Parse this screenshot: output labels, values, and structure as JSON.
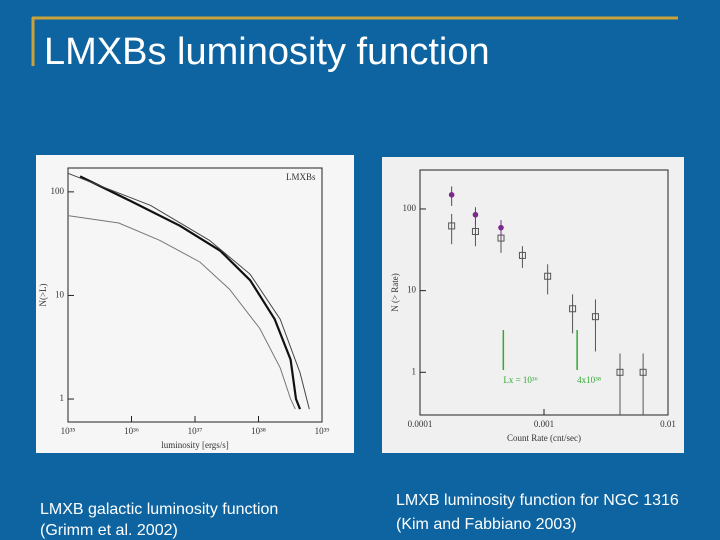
{
  "title": "LMXBs luminosity function",
  "captions": [
    [
      "LMXB galactic luminosity function",
      "(Grimm et al. 2002)"
    ],
    [
      "LMXB luminosity function for NGC 1316",
      "(Kim and Fabbiano 2003)"
    ]
  ],
  "chart_data": [
    {
      "type": "line",
      "log_x": true,
      "log_y": true,
      "x_label": "luminosity [ergs/s]",
      "y_label": "N(>L)",
      "annotation": "LMXBs",
      "xlim": [
        1e+35,
        1e+39
      ],
      "ylim": [
        0.6,
        170
      ],
      "xticks": [
        {
          "value": 1e+35,
          "label": "10³⁵"
        },
        {
          "value": 1e+36,
          "label": "10³⁶"
        },
        {
          "value": 1e+37,
          "label": "10³⁷"
        },
        {
          "value": 1e+38,
          "label": "10³⁸"
        },
        {
          "value": 1e+39,
          "label": "10³⁹"
        }
      ],
      "yticks": [
        1,
        10,
        100
      ],
      "series": [
        {
          "color": "#111111",
          "line_width": 2.2,
          "x": [
            1.55e+35,
            9.5e+35,
            5.8e+36,
            2.5e+37,
            7.4e+37,
            1.8e+38,
            3.2e+38,
            3.9e+38,
            4.5e+38
          ],
          "values": [
            141,
            82,
            47,
            27,
            14,
            5.9,
            2.4,
            1,
            0.8
          ]
        },
        {
          "color": "#777777",
          "line_width": 1,
          "x": [
            1e+35,
            6.3e+35,
            2.8e+36,
            1.2e+37,
            3.5e+37,
            1.05e+38,
            2.2e+38,
            3.2e+38,
            3.8e+38
          ],
          "values": [
            59,
            50,
            34,
            21,
            11.5,
            4.8,
            2,
            1,
            0.8
          ]
        },
        {
          "color": "#444444",
          "line_width": 1,
          "x": [
            1e+35,
            2e+36,
            1.7e+37,
            7.4e+37,
            2.2e+38,
            4.5e+38,
            6.3e+38
          ],
          "values": [
            151,
            74,
            34,
            16,
            5.9,
            1.8,
            0.8
          ]
        }
      ]
    },
    {
      "type": "scatter",
      "log_x": true,
      "log_y": true,
      "x_label": "Count Rate (cnt/sec)",
      "y_label": "N (> Rate)",
      "xlim": [
        0.0001,
        0.01
      ],
      "ylim": [
        0.3,
        300
      ],
      "xticks": [
        0.0001,
        0.001,
        0.01
      ],
      "yticks": [
        1,
        10,
        100
      ],
      "markers": [
        {
          "x": 0.00047,
          "label": "Lx = 10³⁶",
          "color": "#33aa33"
        },
        {
          "x": 0.00185,
          "label": "4x10³⁸",
          "color": "#33aa33"
        }
      ],
      "series": [
        {
          "color": "#555555",
          "marker": "square",
          "x": [
            0.00018,
            0.00028,
            0.00045,
            0.00067,
            0.00107,
            0.0017,
            0.0026,
            0.0041,
            0.0063
          ],
          "values": [
            62,
            53,
            44,
            27,
            15,
            6,
            4.8,
            1,
            1
          ],
          "errors": [
            25,
            18,
            15,
            8,
            6,
            3,
            3,
            0.7,
            0.7
          ]
        },
        {
          "color": "#7a2a8a",
          "marker": "dot",
          "x": [
            0.00018,
            0.00028,
            0.00045
          ],
          "values": [
            149,
            85,
            59
          ],
          "errors": [
            40,
            20,
            14
          ]
        }
      ]
    }
  ]
}
